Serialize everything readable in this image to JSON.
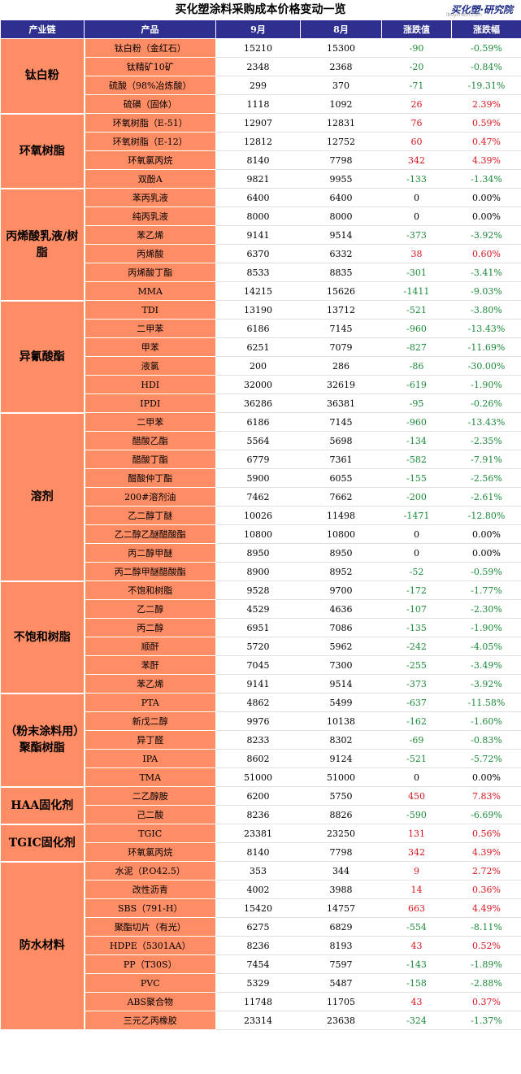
{
  "title": "买化塑涂料采购成本价格变动一览",
  "logo": {
    "text": "买化塑·研究院",
    "url": "ibuychem.com"
  },
  "headers": [
    "产业链",
    "产品",
    "9月",
    "8月",
    "涨跌值",
    "涨跌幅"
  ],
  "colors": {
    "header_bg": "#2e2f8f",
    "cell_bg": "#fe8c64",
    "up": "#d9141d",
    "down": "#1b8a3a"
  },
  "groups": [
    {
      "name": "钛白粉",
      "rows": [
        [
          "钛白粉（金红石）",
          "15210",
          "15300",
          "-90",
          "-0.59%"
        ],
        [
          "钛精矿10矿",
          "2348",
          "2368",
          "-20",
          "-0.84%"
        ],
        [
          "硫酸（98%冶炼酸）",
          "299",
          "370",
          "-71",
          "-19.31%"
        ],
        [
          "硫磺（固体）",
          "1118",
          "1092",
          "26",
          "2.39%"
        ]
      ]
    },
    {
      "name": "环氧树脂",
      "rows": [
        [
          "环氧树脂（E-51）",
          "12907",
          "12831",
          "76",
          "0.59%"
        ],
        [
          "环氧树脂（E-12）",
          "12812",
          "12752",
          "60",
          "0.47%"
        ],
        [
          "环氧氯丙烷",
          "8140",
          "7798",
          "342",
          "4.39%"
        ],
        [
          "双酚A",
          "9821",
          "9955",
          "-133",
          "-1.34%"
        ]
      ]
    },
    {
      "name": "丙烯酸乳液/树脂",
      "rows": [
        [
          "苯丙乳液",
          "6400",
          "6400",
          "0",
          "0.00%"
        ],
        [
          "纯丙乳液",
          "8000",
          "8000",
          "0",
          "0.00%"
        ],
        [
          "苯乙烯",
          "9141",
          "9514",
          "-373",
          "-3.92%"
        ],
        [
          "丙烯酸",
          "6370",
          "6332",
          "38",
          "0.60%"
        ],
        [
          "丙烯酸丁酯",
          "8533",
          "8835",
          "-301",
          "-3.41%"
        ],
        [
          "MMA",
          "14215",
          "15626",
          "-1411",
          "-9.03%"
        ]
      ]
    },
    {
      "name": "异氰酸酯",
      "rows": [
        [
          "TDI",
          "13190",
          "13712",
          "-521",
          "-3.80%"
        ],
        [
          "二甲苯",
          "6186",
          "7145",
          "-960",
          "-13.43%"
        ],
        [
          "甲苯",
          "6251",
          "7079",
          "-827",
          "-11.69%"
        ],
        [
          "液氯",
          "200",
          "286",
          "-86",
          "-30.00%"
        ],
        [
          "HDI",
          "32000",
          "32619",
          "-619",
          "-1.90%"
        ],
        [
          "IPDI",
          "36286",
          "36381",
          "-95",
          "-0.26%"
        ]
      ]
    },
    {
      "name": "溶剂",
      "rows": [
        [
          "二甲苯",
          "6186",
          "7145",
          "-960",
          "-13.43%"
        ],
        [
          "醋酸乙酯",
          "5564",
          "5698",
          "-134",
          "-2.35%"
        ],
        [
          "醋酸丁酯",
          "6779",
          "7361",
          "-582",
          "-7.91%"
        ],
        [
          "醋酸仲丁酯",
          "5900",
          "6055",
          "-155",
          "-2.56%"
        ],
        [
          "200#溶剂油",
          "7462",
          "7662",
          "-200",
          "-2.61%"
        ],
        [
          "乙二醇丁醚",
          "10026",
          "11498",
          "-1471",
          "-12.80%"
        ],
        [
          "乙二醇乙醚醋酸酯",
          "10800",
          "10800",
          "0",
          "0.00%"
        ],
        [
          "丙二醇甲醚",
          "8950",
          "8950",
          "0",
          "0.00%"
        ],
        [
          "丙二醇甲醚醋酸酯",
          "8900",
          "8952",
          "-52",
          "-0.59%"
        ]
      ]
    },
    {
      "name": "不饱和树脂",
      "rows": [
        [
          "不饱和树脂",
          "9528",
          "9700",
          "-172",
          "-1.77%"
        ],
        [
          "乙二醇",
          "4529",
          "4636",
          "-107",
          "-2.30%"
        ],
        [
          "丙二醇",
          "6951",
          "7086",
          "-135",
          "-1.90%"
        ],
        [
          "顺酐",
          "5720",
          "5962",
          "-242",
          "-4.05%"
        ],
        [
          "苯酐",
          "7045",
          "7300",
          "-255",
          "-3.49%"
        ],
        [
          "苯乙烯",
          "9141",
          "9514",
          "-373",
          "-3.92%"
        ]
      ]
    },
    {
      "name": "（粉末涂料用）聚酯树脂",
      "rows": [
        [
          "PTA",
          "4862",
          "5499",
          "-637",
          "-11.58%"
        ],
        [
          "新戊二醇",
          "9976",
          "10138",
          "-162",
          "-1.60%"
        ],
        [
          "异丁醛",
          "8233",
          "8302",
          "-69",
          "-0.83%"
        ],
        [
          "IPA",
          "8602",
          "9124",
          "-521",
          "-5.72%"
        ],
        [
          "TMA",
          "51000",
          "51000",
          "0",
          "0.00%"
        ]
      ]
    },
    {
      "name": "HAA固化剂",
      "rows": [
        [
          "二乙醇胺",
          "6200",
          "5750",
          "450",
          "7.83%"
        ],
        [
          "己二酸",
          "8236",
          "8826",
          "-590",
          "-6.69%"
        ]
      ]
    },
    {
      "name": "TGIC固化剂",
      "rows": [
        [
          "TGIC",
          "23381",
          "23250",
          "131",
          "0.56%"
        ],
        [
          "环氧氯丙烷",
          "8140",
          "7798",
          "342",
          "4.39%"
        ]
      ]
    },
    {
      "name": "防水材料",
      "rows": [
        [
          "水泥（P.O42.5）",
          "353",
          "344",
          "9",
          "2.72%"
        ],
        [
          "改性沥青",
          "4002",
          "3988",
          "14",
          "0.36%"
        ],
        [
          "SBS（791-H）",
          "15420",
          "14757",
          "663",
          "4.49%"
        ],
        [
          "聚酯切片（有光）",
          "6275",
          "6829",
          "-554",
          "-8.11%"
        ],
        [
          "HDPE（5301AA）",
          "8236",
          "8193",
          "43",
          "0.52%"
        ],
        [
          "PP（T30S）",
          "7454",
          "7597",
          "-143",
          "-1.89%"
        ],
        [
          "PVC",
          "5329",
          "5487",
          "-158",
          "-2.88%"
        ],
        [
          "ABS聚合物",
          "11748",
          "11705",
          "43",
          "0.37%"
        ],
        [
          "三元乙丙橡胶",
          "23314",
          "23638",
          "-324",
          "-1.37%"
        ]
      ]
    }
  ]
}
